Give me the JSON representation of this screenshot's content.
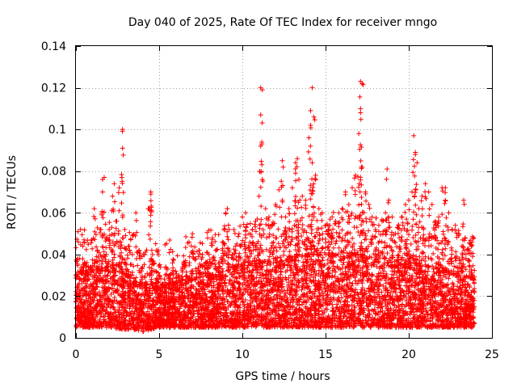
{
  "chart_data": {
    "type": "scatter",
    "title": "Day 040 of 2025, Rate Of TEC Index for receiver mngo",
    "xlabel": "GPS time / hours",
    "ylabel": "ROTI / TECUs",
    "xlim": [
      0,
      25
    ],
    "ylim": [
      0,
      0.14
    ],
    "x_ticks": [
      0,
      5,
      10,
      15,
      20,
      25
    ],
    "x_tick_labels": [
      "0",
      "5",
      "10",
      "15",
      "20",
      "25"
    ],
    "y_ticks": [
      0,
      0.02,
      0.04,
      0.06,
      0.08,
      0.1,
      0.12,
      0.14
    ],
    "y_tick_labels": [
      "0",
      "0.02",
      "0.04",
      "0.06",
      "0.08",
      "0.1",
      "0.12",
      "0.14"
    ],
    "grid": true,
    "marker": "+",
    "series_color": "#ff0000",
    "series": [
      {
        "name": "ROTI",
        "x": [
          0.1,
          0.3,
          0.5,
          0.7,
          0.9,
          1.1,
          1.3,
          1.5,
          1.6,
          1.7,
          1.8,
          2.0,
          2.2,
          2.4,
          2.6,
          2.7,
          2.8,
          3.0,
          3.2,
          3.4,
          3.6,
          3.8,
          4.0,
          4.2,
          4.4,
          4.5,
          4.6,
          4.8,
          5.0,
          5.2,
          5.4,
          5.6,
          5.8,
          6.0,
          6.2,
          6.4,
          6.6,
          6.8,
          7.0,
          7.2,
          7.4,
          7.6,
          7.8,
          8.0,
          8.2,
          8.4,
          8.6,
          8.8,
          9.0,
          9.2,
          9.4,
          9.6,
          9.8,
          10.0,
          10.2,
          10.4,
          10.6,
          10.8,
          11.0,
          11.1,
          11.2,
          11.4,
          11.6,
          11.8,
          12.0,
          12.2,
          12.4,
          12.6,
          12.8,
          13.0,
          13.2,
          13.4,
          13.6,
          13.8,
          14.0,
          14.1,
          14.2,
          14.4,
          14.6,
          14.8,
          15.0,
          15.2,
          15.4,
          15.6,
          15.8,
          16.0,
          16.2,
          16.4,
          16.6,
          16.8,
          17.0,
          17.1,
          17.2,
          17.4,
          17.6,
          17.8,
          18.0,
          18.2,
          18.4,
          18.6,
          18.8,
          19.0,
          19.2,
          19.4,
          19.6,
          19.8,
          20.0,
          20.2,
          20.4,
          20.5,
          20.6,
          20.8,
          21.0,
          21.2,
          21.4,
          21.6,
          21.8,
          22.0,
          22.2,
          22.4,
          22.6,
          22.8,
          23.0,
          23.2,
          23.4,
          23.6,
          23.8,
          23.9,
          2.8,
          2.8,
          11.1,
          11.2,
          11.1,
          14.2,
          14.1,
          14.3,
          17.1,
          17.2,
          17.1,
          20.3,
          20.4,
          13.3,
          13.2,
          12.4,
          18.7,
          1.6,
          4.5,
          2.3,
          9.1,
          10.2,
          22.2,
          23.3
        ],
        "values": [
          0.038,
          0.032,
          0.046,
          0.03,
          0.034,
          0.062,
          0.042,
          0.052,
          0.07,
          0.077,
          0.048,
          0.052,
          0.068,
          0.056,
          0.072,
          0.046,
          0.048,
          0.036,
          0.044,
          0.04,
          0.06,
          0.042,
          0.034,
          0.026,
          0.062,
          0.069,
          0.04,
          0.032,
          0.03,
          0.026,
          0.034,
          0.03,
          0.036,
          0.032,
          0.03,
          0.034,
          0.036,
          0.046,
          0.05,
          0.038,
          0.042,
          0.04,
          0.036,
          0.04,
          0.048,
          0.042,
          0.036,
          0.046,
          0.06,
          0.052,
          0.04,
          0.044,
          0.05,
          0.058,
          0.048,
          0.05,
          0.052,
          0.056,
          0.068,
          0.092,
          0.076,
          0.062,
          0.058,
          0.054,
          0.064,
          0.071,
          0.066,
          0.058,
          0.062,
          0.072,
          0.084,
          0.076,
          0.068,
          0.066,
          0.096,
          0.102,
          0.084,
          0.078,
          0.062,
          0.06,
          0.054,
          0.052,
          0.058,
          0.056,
          0.06,
          0.062,
          0.07,
          0.064,
          0.072,
          0.078,
          0.098,
          0.108,
          0.082,
          0.07,
          0.064,
          0.058,
          0.052,
          0.054,
          0.056,
          0.06,
          0.066,
          0.058,
          0.05,
          0.054,
          0.058,
          0.064,
          0.066,
          0.07,
          0.089,
          0.084,
          0.062,
          0.068,
          0.074,
          0.07,
          0.064,
          0.056,
          0.058,
          0.072,
          0.066,
          0.06,
          0.052,
          0.054,
          0.05,
          0.044,
          0.048,
          0.042,
          0.046,
          0.048,
          0.1,
          0.091,
          0.12,
          0.119,
          0.107,
          0.12,
          0.109,
          0.106,
          0.123,
          0.122,
          0.11,
          0.097,
          0.088,
          0.086,
          0.079,
          0.085,
          0.081,
          0.076,
          0.07,
          0.074,
          0.062,
          0.06,
          0.072,
          0.066
        ]
      }
    ],
    "baseline_band": {
      "description": "dense cloud of ROTI samples, lower/upper envelope by hour",
      "hours": [
        0,
        1,
        2,
        3,
        4,
        5,
        6,
        7,
        8,
        9,
        10,
        11,
        12,
        13,
        14,
        15,
        16,
        17,
        18,
        19,
        20,
        21,
        22,
        23,
        24
      ],
      "low": [
        0.005,
        0.005,
        0.005,
        0.004,
        0.003,
        0.005,
        0.005,
        0.005,
        0.005,
        0.005,
        0.005,
        0.005,
        0.005,
        0.005,
        0.005,
        0.005,
        0.005,
        0.005,
        0.005,
        0.005,
        0.005,
        0.005,
        0.005,
        0.005,
        0.005
      ],
      "high": [
        0.03,
        0.032,
        0.034,
        0.03,
        0.026,
        0.024,
        0.026,
        0.028,
        0.03,
        0.032,
        0.034,
        0.036,
        0.036,
        0.038,
        0.04,
        0.04,
        0.038,
        0.04,
        0.036,
        0.034,
        0.036,
        0.034,
        0.032,
        0.03,
        0.028
      ]
    }
  }
}
